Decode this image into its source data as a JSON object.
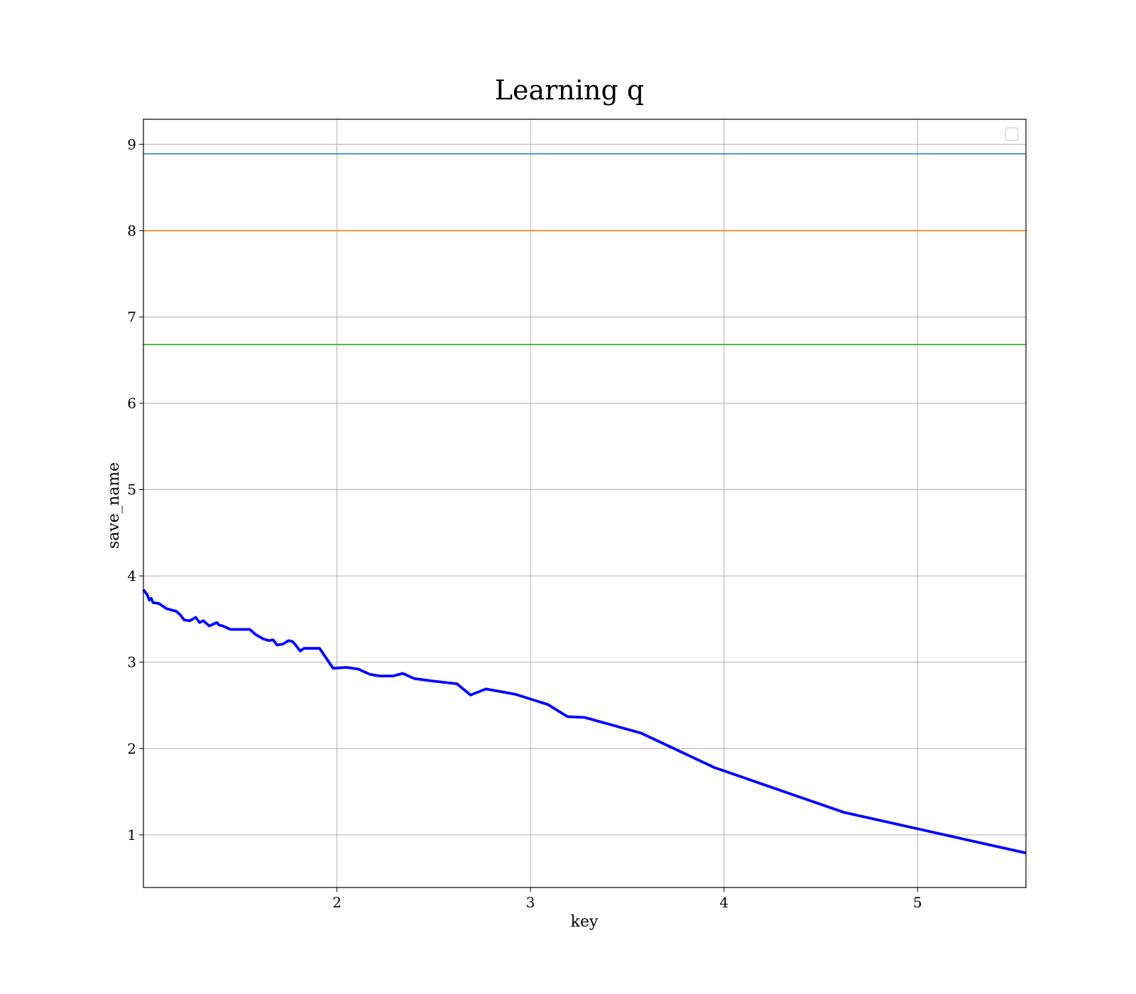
{
  "chart_data": {
    "type": "line",
    "title": "Learning q",
    "xlabel": "key",
    "ylabel": "save_name",
    "xlim": [
      1.0,
      5.56
    ],
    "ylim": [
      0.39,
      9.29
    ],
    "xticks": [
      2,
      3,
      4,
      5
    ],
    "yticks": [
      1,
      2,
      3,
      4,
      5,
      6,
      7,
      8,
      9
    ],
    "grid": true,
    "legend": {
      "location": "upper-right",
      "entries": []
    },
    "hlines": [
      {
        "y": 8.89,
        "color": "#1f77b4"
      },
      {
        "y": 8.0,
        "color": "#ff7f0e"
      },
      {
        "y": 6.68,
        "color": "#2ca02c"
      }
    ],
    "series": [
      {
        "color": "#0000ff",
        "x": [
          1.0,
          1.02,
          1.03,
          1.04,
          1.05,
          1.08,
          1.12,
          1.17,
          1.19,
          1.21,
          1.24,
          1.27,
          1.29,
          1.31,
          1.34,
          1.38,
          1.39,
          1.41,
          1.45,
          1.5,
          1.55,
          1.58,
          1.62,
          1.65,
          1.67,
          1.69,
          1.72,
          1.75,
          1.77,
          1.79,
          1.81,
          1.83,
          1.87,
          1.91,
          1.98,
          2.05,
          2.11,
          2.17,
          2.22,
          2.29,
          2.34,
          2.4,
          2.5,
          2.62,
          2.69,
          2.77,
          2.92,
          3.09,
          3.19,
          3.28,
          3.57,
          3.95,
          4.62,
          5.0,
          5.56
        ],
        "y": [
          3.84,
          3.78,
          3.72,
          3.74,
          3.69,
          3.68,
          3.62,
          3.59,
          3.55,
          3.49,
          3.48,
          3.52,
          3.46,
          3.48,
          3.42,
          3.46,
          3.43,
          3.42,
          3.38,
          3.38,
          3.38,
          3.32,
          3.27,
          3.25,
          3.26,
          3.2,
          3.21,
          3.25,
          3.24,
          3.19,
          3.13,
          3.16,
          3.16,
          3.16,
          2.93,
          2.94,
          2.92,
          2.86,
          2.84,
          2.84,
          2.87,
          2.81,
          2.78,
          2.75,
          2.62,
          2.69,
          2.63,
          2.51,
          2.37,
          2.36,
          2.18,
          1.78,
          1.26,
          1.07,
          0.79
        ]
      }
    ]
  }
}
